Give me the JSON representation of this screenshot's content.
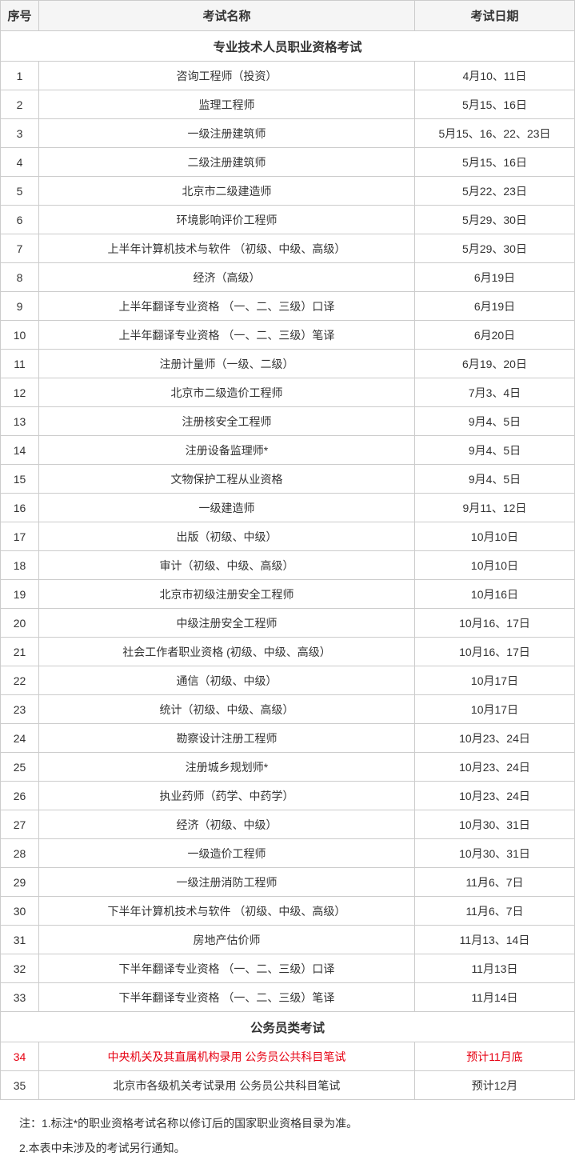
{
  "headers": {
    "index": "序号",
    "name": "考试名称",
    "date": "考试日期"
  },
  "section1": {
    "title": "专业技术人员职业资格考试",
    "rows": [
      {
        "n": "1",
        "name": "咨询工程师（投资）",
        "date": "4月10、11日"
      },
      {
        "n": "2",
        "name": "监理工程师",
        "date": "5月15、16日"
      },
      {
        "n": "3",
        "name": "一级注册建筑师",
        "date": "5月15、16、22、23日"
      },
      {
        "n": "4",
        "name": "二级注册建筑师",
        "date": "5月15、16日"
      },
      {
        "n": "5",
        "name": "北京市二级建造师",
        "date": "5月22、23日"
      },
      {
        "n": "6",
        "name": "环境影响评价工程师",
        "date": "5月29、30日"
      },
      {
        "n": "7",
        "name": "上半年计算机技术与软件 （初级、中级、高级）",
        "date": "5月29、30日"
      },
      {
        "n": "8",
        "name": "经济（高级）",
        "date": "6月19日"
      },
      {
        "n": "9",
        "name": "上半年翻译专业资格 （一、二、三级）口译",
        "date": "6月19日"
      },
      {
        "n": "10",
        "name": "上半年翻译专业资格 （一、二、三级）笔译",
        "date": "6月20日"
      },
      {
        "n": "11",
        "name": "注册计量师（一级、二级）",
        "date": "6月19、20日"
      },
      {
        "n": "12",
        "name": "北京市二级造价工程师",
        "date": "7月3、4日"
      },
      {
        "n": "13",
        "name": "注册核安全工程师",
        "date": "9月4、5日"
      },
      {
        "n": "14",
        "name": "注册设备监理师*",
        "date": "9月4、5日"
      },
      {
        "n": "15",
        "name": "文物保护工程从业资格",
        "date": "9月4、5日"
      },
      {
        "n": "16",
        "name": "一级建造师",
        "date": "9月11、12日"
      },
      {
        "n": "17",
        "name": "出版（初级、中级）",
        "date": "10月10日"
      },
      {
        "n": "18",
        "name": "审计（初级、中级、高级）",
        "date": "10月10日"
      },
      {
        "n": "19",
        "name": "北京市初级注册安全工程师",
        "date": "10月16日"
      },
      {
        "n": "20",
        "name": "中级注册安全工程师",
        "date": "10月16、17日"
      },
      {
        "n": "21",
        "name": "社会工作者职业资格 (初级、中级、高级）",
        "date": "10月16、17日"
      },
      {
        "n": "22",
        "name": "通信（初级、中级）",
        "date": "10月17日"
      },
      {
        "n": "23",
        "name": "统计（初级、中级、高级）",
        "date": "10月17日"
      },
      {
        "n": "24",
        "name": "勘察设计注册工程师",
        "date": "10月23、24日"
      },
      {
        "n": "25",
        "name": "注册城乡规划师*",
        "date": "10月23、24日"
      },
      {
        "n": "26",
        "name": "执业药师（药学、中药学）",
        "date": "10月23、24日"
      },
      {
        "n": "27",
        "name": "经济（初级、中级）",
        "date": "10月30、31日"
      },
      {
        "n": "28",
        "name": "一级造价工程师",
        "date": "10月30、31日"
      },
      {
        "n": "29",
        "name": "一级注册消防工程师",
        "date": "11月6、7日"
      },
      {
        "n": "30",
        "name": "下半年计算机技术与软件 （初级、中级、高级）",
        "date": "11月6、7日"
      },
      {
        "n": "31",
        "name": "房地产估价师",
        "date": "11月13、14日"
      },
      {
        "n": "32",
        "name": "下半年翻译专业资格 （一、二、三级）口译",
        "date": "11月13日"
      },
      {
        "n": "33",
        "name": "下半年翻译专业资格 （一、二、三级）笔译",
        "date": "11月14日"
      }
    ]
  },
  "section2": {
    "title": "公务员类考试",
    "rows": [
      {
        "n": "34",
        "name": "中央机关及其直属机构录用 公务员公共科目笔试",
        "date": "预计11月底",
        "highlight": true
      },
      {
        "n": "35",
        "name": "北京市各级机关考试录用 公务员公共科目笔试",
        "date": "预计12月"
      }
    ]
  },
  "notes": {
    "line1": "注：1.标注*的职业资格考试名称以修订后的国家职业资格目录为准。",
    "line2": "2.本表中未涉及的考试另行通知。"
  }
}
